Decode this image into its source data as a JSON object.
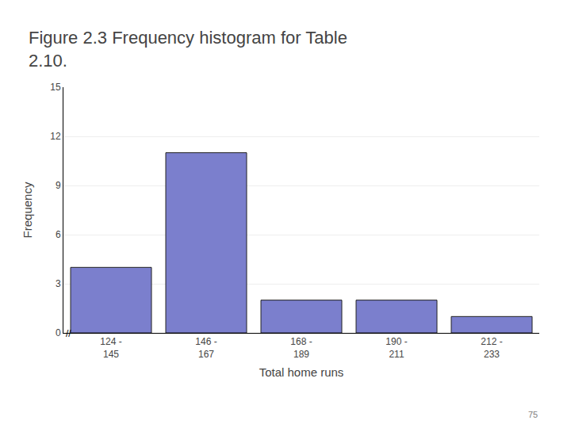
{
  "chart_data": {
    "type": "bar",
    "title": "Figure 2.3 Frequency histogram for Table\n2.10.",
    "categories": [
      "124 -\n145",
      "146 -\n167",
      "168 -\n189",
      "190 -\n211",
      "212 -\n233"
    ],
    "values": [
      4,
      11,
      2,
      2,
      1
    ],
    "color": "#7b7fcd",
    "xlabel": "Total home runs",
    "ylabel": "Frequency",
    "ylim": [
      0,
      15
    ],
    "yticks": [
      0,
      3,
      6,
      9,
      12,
      15
    ],
    "grid": true,
    "annotations": [
      "//",
      "75"
    ]
  }
}
